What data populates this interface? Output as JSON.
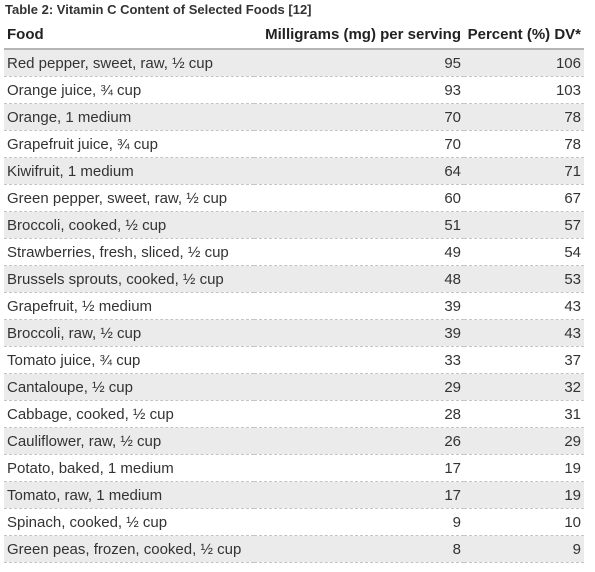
{
  "caption": "Table 2: Vitamin C Content of Selected Foods [12]",
  "columns": {
    "food": "Food",
    "mg": "Milligrams (mg) per serving",
    "dv": "Percent (%) DV*"
  },
  "rows": [
    {
      "food": "Red pepper, sweet, raw, ½ cup",
      "mg": "95",
      "dv": "106"
    },
    {
      "food": "Orange juice, ¾ cup",
      "mg": "93",
      "dv": "103"
    },
    {
      "food": "Orange, 1 medium",
      "mg": "70",
      "dv": "78"
    },
    {
      "food": "Grapefruit juice, ¾ cup",
      "mg": "70",
      "dv": "78"
    },
    {
      "food": "Kiwifruit, 1 medium",
      "mg": "64",
      "dv": "71"
    },
    {
      "food": "Green pepper, sweet, raw, ½ cup",
      "mg": "60",
      "dv": "67"
    },
    {
      "food": "Broccoli, cooked, ½ cup",
      "mg": "51",
      "dv": "57"
    },
    {
      "food": "Strawberries, fresh, sliced, ½ cup",
      "mg": "49",
      "dv": "54"
    },
    {
      "food": "Brussels sprouts, cooked, ½ cup",
      "mg": "48",
      "dv": "53"
    },
    {
      "food": "Grapefruit, ½ medium",
      "mg": "39",
      "dv": "43"
    },
    {
      "food": "Broccoli, raw, ½ cup",
      "mg": "39",
      "dv": "43"
    },
    {
      "food": "Tomato juice, ¾ cup",
      "mg": "33",
      "dv": "37"
    },
    {
      "food": "Cantaloupe, ½ cup",
      "mg": "29",
      "dv": "32"
    },
    {
      "food": "Cabbage, cooked, ½ cup",
      "mg": "28",
      "dv": "31"
    },
    {
      "food": "Cauliflower, raw, ½ cup",
      "mg": "26",
      "dv": "29"
    },
    {
      "food": "Potato, baked, 1 medium",
      "mg": "17",
      "dv": "19"
    },
    {
      "food": "Tomato, raw, 1 medium",
      "mg": "17",
      "dv": "19"
    },
    {
      "food": "Spinach, cooked, ½ cup",
      "mg": "9",
      "dv": "10"
    },
    {
      "food": "Green peas, frozen, cooked, ½ cup",
      "mg": "8",
      "dv": "9"
    }
  ],
  "colors": {
    "stripe": "#ebebeb",
    "header_rule": "#b5b5b5",
    "row_rule": "#c4c4c4"
  }
}
